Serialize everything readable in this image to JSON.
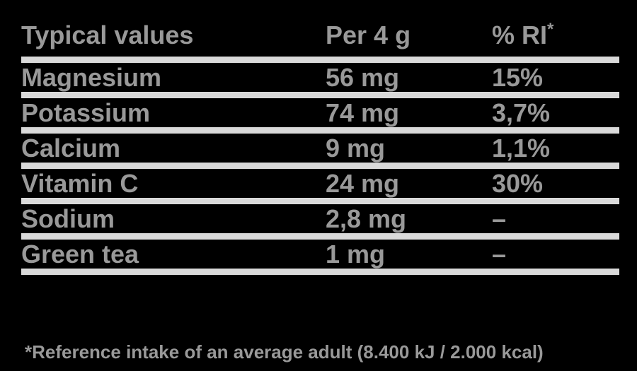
{
  "colors": {
    "background": "#000000",
    "text": "#999999",
    "divider": "#d9d9d9"
  },
  "table": {
    "header": {
      "col1": "Typical values",
      "col2": "Per 4 g",
      "col3_base": "% RI",
      "col3_sup": "*"
    },
    "rows": [
      {
        "label": "Magnesium",
        "amount": "56 mg",
        "ri": "15%"
      },
      {
        "label": "Potassium",
        "amount": "74 mg",
        "ri": "3,7%"
      },
      {
        "label": "Calcium",
        "amount": "9 mg",
        "ri": "1,1%"
      },
      {
        "label": "Vitamin C",
        "amount": "24 mg",
        "ri": "30%"
      },
      {
        "label": "Sodium",
        "amount": "2,8 mg",
        "ri": "–"
      },
      {
        "label": "Green tea",
        "amount": "1 mg",
        "ri": "–"
      }
    ],
    "footnote": "*Reference intake of an average adult (8.400 kJ / 2.000 kcal)"
  },
  "chart_data": {
    "type": "table",
    "title": "Typical values",
    "columns": [
      "Typical values",
      "Per 4 g",
      "% RI*"
    ],
    "rows": [
      [
        "Magnesium",
        "56 mg",
        "15%"
      ],
      [
        "Potassium",
        "74 mg",
        "3,7%"
      ],
      [
        "Calcium",
        "9 mg",
        "1,1%"
      ],
      [
        "Vitamin C",
        "24 mg",
        "30%"
      ],
      [
        "Sodium",
        "2,8 mg",
        "–"
      ],
      [
        "Green tea",
        "1 mg",
        "–"
      ]
    ],
    "footnote": "*Reference intake of an average adult (8.400 kJ / 2.000 kcal)"
  }
}
